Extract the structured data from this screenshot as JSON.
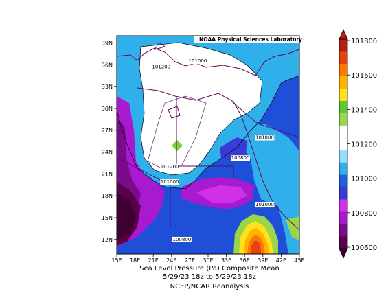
{
  "credit": "NOAA Physical Sciences Laboratory",
  "caption": {
    "line1": "Sea Level Pressure (Pa)    Composite Mean",
    "line2": "5/29/23 18z  to 5/29/23 18z",
    "line3": "NCEP/NCAR Reanalysis"
  },
  "chart_data": {
    "type": "heatmap",
    "variable": "Sea Level Pressure (Pa)",
    "x_ticks": [
      "15E",
      "18E",
      "21E",
      "24E",
      "27E",
      "30E",
      "33E",
      "36E",
      "39E",
      "42E",
      "45E"
    ],
    "y_ticks": [
      "39N",
      "36N",
      "33N",
      "30N",
      "27N",
      "24N",
      "21N",
      "18N",
      "15N",
      "12N"
    ],
    "xlim_lon": [
      15,
      45
    ],
    "ylim_lat": [
      10,
      40
    ],
    "contour_labels": [
      {
        "text": "101200",
        "lon": 22.3,
        "lat": 35.5
      },
      {
        "text": "101000",
        "lon": 28.3,
        "lat": 36.3
      },
      {
        "text": "101000",
        "lon": 39.3,
        "lat": 25.8
      },
      {
        "text": "100800",
        "lon": 35.3,
        "lat": 23.0
      },
      {
        "text": "101200",
        "lon": 23.7,
        "lat": 21.8
      },
      {
        "text": "101000",
        "lon": 23.7,
        "lat": 19.7
      },
      {
        "text": "101000",
        "lon": 39.3,
        "lat": 16.6
      },
      {
        "text": "100800",
        "lon": 25.7,
        "lat": 11.8
      }
    ],
    "colorbar": {
      "levels": [
        100600,
        100800,
        101000,
        101200,
        101400,
        101600,
        101800
      ],
      "labels": [
        "100600",
        "100800",
        "101000",
        "101200",
        "101400",
        "101600",
        "101800"
      ],
      "colors": [
        "#5a004a",
        "#7a0c8c",
        "#a71ad0",
        "#d230e6",
        "#3a3ad6",
        "#1f5ee0",
        "#2fb0ea",
        "#8fe0ff",
        "#ffffff",
        "#ffffff",
        "#9ad64a",
        "#5cc832",
        "#ffe31a",
        "#ffb400",
        "#ff7800",
        "#e84010",
        "#b81e10"
      ]
    }
  }
}
